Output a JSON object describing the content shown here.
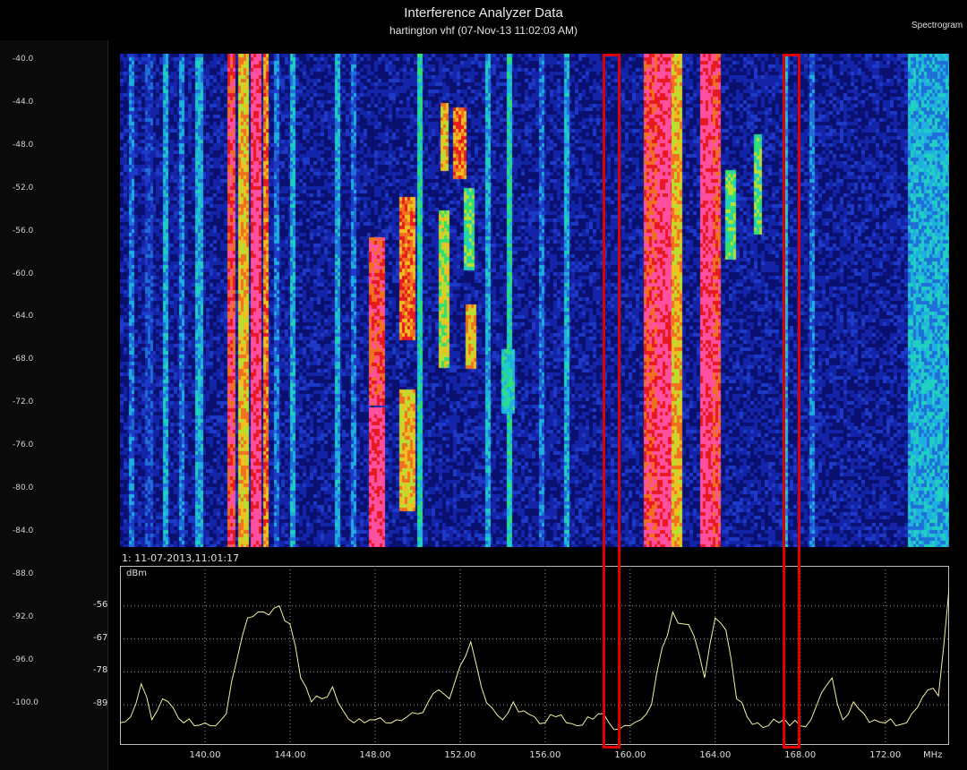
{
  "header": {
    "title": "Interference Analyzer Data",
    "subtitle": "hartington vhf (07-Nov-13 11:02:03 AM)",
    "mode": "Spectrogram"
  },
  "left_scale": {
    "labels": [
      "-40.0",
      "-44.0",
      "-48.0",
      "-52.0",
      "-56.0",
      "-60.0",
      "-64.0",
      "-68.0",
      "-72.0",
      "-76.0",
      "-80.0",
      "-84.0",
      "-88.0",
      "-92.0",
      "-96.0",
      "-100.0"
    ]
  },
  "marker": {
    "label": "1: 11-07-2013,11:01:17"
  },
  "trace": {
    "unit": "dBm",
    "y_ticks": [
      "-56",
      "-67",
      "-78",
      "-89"
    ],
    "x_ticks": [
      "140.00",
      "144.00",
      "148.00",
      "152.00",
      "156.00",
      "160.00",
      "164.00",
      "168.00",
      "172.00"
    ],
    "x_unit": "MHz"
  },
  "colors": {
    "background": "#000000",
    "trace": "#f2f0a0",
    "highlight": "#e00000",
    "grid": "#9a9a9a"
  },
  "chart_data": {
    "type": "line",
    "title": "Interference Analyzer Data",
    "subtitle": "hartington vhf (07-Nov-13 11:02:03 AM)",
    "xlabel": "MHz",
    "ylabel": "dBm",
    "xlim": [
      136,
      175
    ],
    "ylim": [
      -100,
      -45
    ],
    "grid": true,
    "series": [
      {
        "x": [
          136.0,
          136.5,
          137.0,
          137.5,
          138.0,
          138.5,
          139.0,
          139.5,
          140.0,
          140.5,
          141.0,
          141.5,
          142.0,
          142.5,
          143.0,
          143.5,
          144.0,
          144.5,
          145.0,
          145.5,
          146.0,
          146.5,
          147.0,
          147.5,
          148.0,
          148.5,
          149.0,
          149.5,
          150.0,
          150.5,
          151.0,
          151.5,
          152.0,
          152.5,
          153.0,
          153.5,
          154.0,
          154.5,
          155.0,
          155.5,
          156.0,
          156.5,
          157.0,
          157.5,
          158.0,
          158.5,
          159.0,
          159.5,
          160.0,
          160.5,
          161.0,
          161.5,
          162.0,
          162.5,
          163.0,
          163.5,
          164.0,
          164.5,
          165.0,
          165.5,
          166.0,
          166.5,
          167.0,
          167.5,
          168.0,
          168.5,
          169.0,
          169.5,
          170.0,
          170.5,
          171.0,
          171.5,
          172.0,
          172.5,
          173.0,
          173.5,
          174.0,
          174.5,
          175.0
        ],
        "y": [
          -95,
          -93,
          -82,
          -94,
          -87,
          -90,
          -95,
          -96,
          -95,
          -96,
          -92,
          -74,
          -60,
          -58,
          -59,
          -56,
          -62,
          -80,
          -88,
          -87,
          -83,
          -91,
          -95,
          -95,
          -94,
          -95,
          -94,
          -93,
          -92,
          -88,
          -84,
          -87,
          -76,
          -68,
          -83,
          -90,
          -94,
          -88,
          -91,
          -93,
          -95,
          -93,
          -95,
          -96,
          -93,
          -92,
          -95,
          -97,
          -96,
          -94,
          -89,
          -70,
          -58,
          -62,
          -66,
          -80,
          -60,
          -64,
          -87,
          -93,
          -95,
          -96,
          -95,
          -96,
          -96,
          -94,
          -85,
          -80,
          -94,
          -88,
          -92,
          -94,
          -95,
          -96,
          -95,
          -90,
          -84,
          -86,
          -50
        ]
      }
    ]
  }
}
